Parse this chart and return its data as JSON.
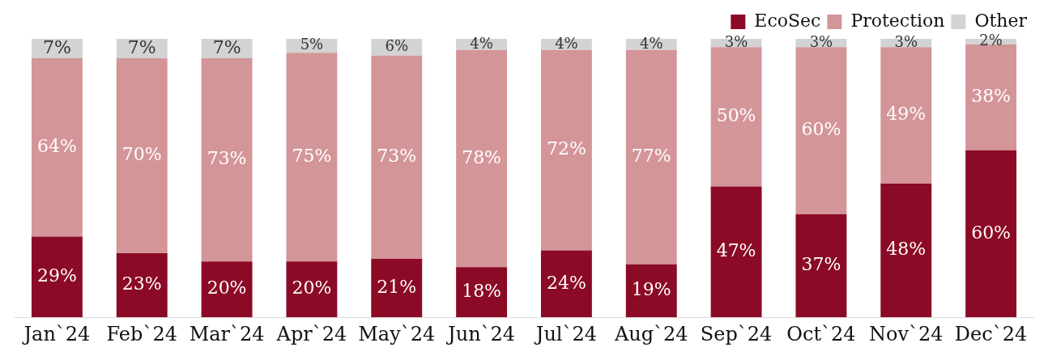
{
  "chart_data": {
    "type": "bar",
    "stacked": true,
    "categories": [
      "Jan`24",
      "Feb`24",
      "Mar`24",
      "Apr`24",
      "May`24",
      "Jun`24",
      "Jul`24",
      "Aug`24",
      "Sep`24",
      "Oct`24",
      "Nov`24",
      "Dec`24"
    ],
    "series": [
      {
        "name": "EcoSec",
        "color": "#8b0a26",
        "values": [
          29,
          23,
          20,
          20,
          21,
          18,
          24,
          19,
          47,
          37,
          48,
          60
        ],
        "value_labels": [
          "29%",
          "23%",
          "20%",
          "20%",
          "21%",
          "18%",
          "24%",
          "19%",
          "47%",
          "37%",
          "48%",
          "60%"
        ]
      },
      {
        "name": "Protection",
        "color": "#d49599",
        "values": [
          64,
          70,
          73,
          75,
          73,
          78,
          72,
          77,
          50,
          60,
          49,
          38
        ],
        "value_labels": [
          "64%",
          "70%",
          "73%",
          "75%",
          "73%",
          "78%",
          "72%",
          "77%",
          "50%",
          "60%",
          "49%",
          "38%"
        ]
      },
      {
        "name": "Other",
        "color": "#d3d3d3",
        "values": [
          7,
          7,
          7,
          5,
          6,
          4,
          4,
          4,
          3,
          3,
          3,
          2
        ],
        "value_labels": [
          "7%",
          "7%",
          "7%",
          "5%",
          "6%",
          "4%",
          "4%",
          "4%",
          "3%",
          "3%",
          "3%",
          "2%"
        ]
      }
    ],
    "tick_labels": "x",
    "grid": false,
    "legend": "top right"
  }
}
